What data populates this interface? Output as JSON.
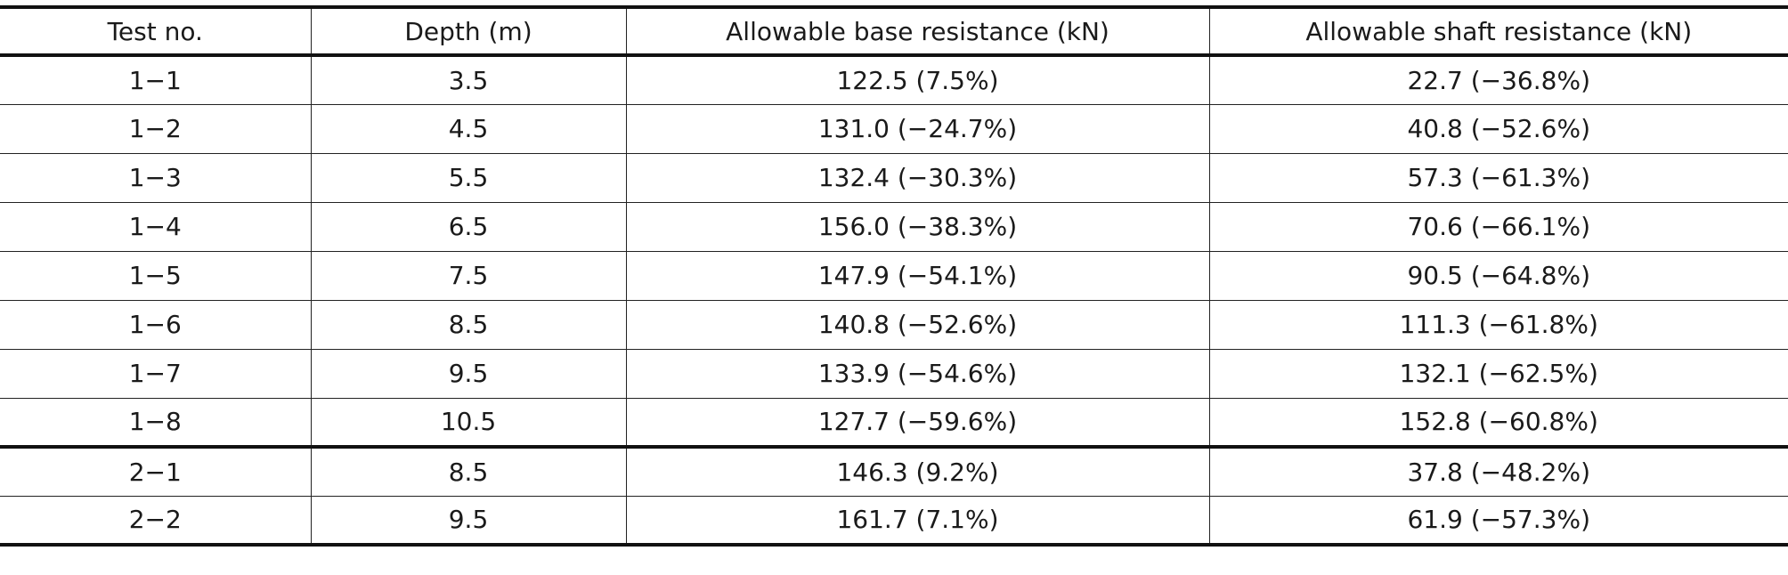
{
  "table": {
    "header": [
      "Test no.",
      "Depth (m)",
      "Allowable base resistance (kN)",
      "Allowable shaft resistance (kN)"
    ],
    "rows": [
      [
        "1−1",
        "3.5",
        "122.5 (7.5%)",
        "22.7 (−36.8%)"
      ],
      [
        "1−2",
        "4.5",
        "131.0 (−24.7%)",
        "40.8 (−52.6%)"
      ],
      [
        "1−3",
        "5.5",
        "132.4 (−30.3%)",
        "57.3 (−61.3%)"
      ],
      [
        "1−4",
        "6.5",
        "156.0 (−38.3%)",
        "70.6 (−66.1%)"
      ],
      [
        "1−5",
        "7.5",
        "147.9 (−54.1%)",
        "90.5 (−64.8%)"
      ],
      [
        "1−6",
        "8.5",
        "140.8 (−52.6%)",
        "111.3 (−61.8%)"
      ],
      [
        "1−7",
        "9.5",
        "133.9 (−54.6%)",
        "132.1 (−62.5%)"
      ],
      [
        "1−8",
        "10.5",
        "127.7 (−59.6%)",
        "152.8 (−60.8%)"
      ],
      [
        "2−1",
        "8.5",
        "146.3 (9.2%)",
        "37.8 (−48.2%)"
      ],
      [
        "2−2",
        "9.5",
        "161.7 (7.1%)",
        "61.9 (−57.3%)"
      ]
    ]
  }
}
